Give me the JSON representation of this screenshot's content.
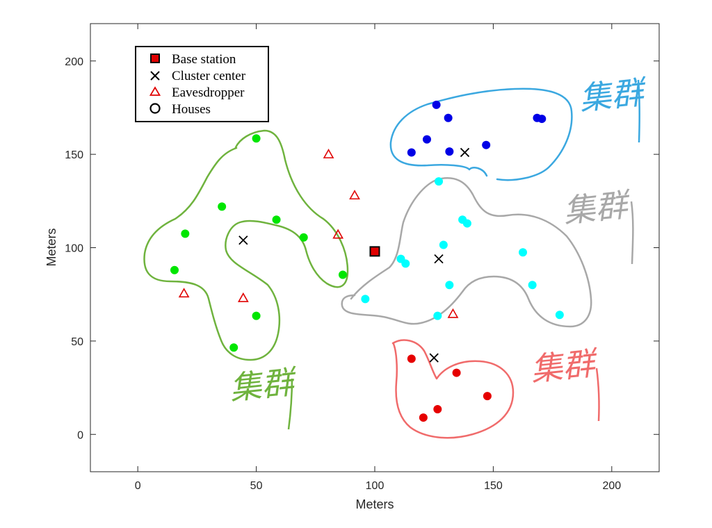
{
  "chart_data": {
    "type": "scatter",
    "xlabel": "Meters",
    "ylabel": "Meters",
    "xlim": [
      -20,
      220
    ],
    "ylim": [
      -20,
      220
    ],
    "xticks": [
      0,
      50,
      100,
      150,
      200
    ],
    "yticks": [
      0,
      50,
      100,
      150,
      200
    ],
    "grid": false,
    "legend": {
      "placement": "top-left",
      "entries": [
        {
          "label": "Base station",
          "marker": "square",
          "color": "#e00000"
        },
        {
          "label": "Cluster center",
          "marker": "x",
          "color": "#000000"
        },
        {
          "label": "Eavesdropper",
          "marker": "triangle",
          "color": "#e00000"
        },
        {
          "label": "Houses",
          "marker": "circle",
          "color": "#000000"
        }
      ]
    },
    "base_station": [
      {
        "x": 100,
        "y": 98
      }
    ],
    "cluster_centers": [
      {
        "x": 44.5,
        "y": 104
      },
      {
        "x": 138,
        "y": 151
      },
      {
        "x": 127,
        "y": 94
      },
      {
        "x": 125,
        "y": 41
      }
    ],
    "eavesdroppers": [
      {
        "x": 80.5,
        "y": 150
      },
      {
        "x": 91.5,
        "y": 128
      },
      {
        "x": 84.5,
        "y": 107
      },
      {
        "x": 19.5,
        "y": 75.5
      },
      {
        "x": 44.5,
        "y": 73
      },
      {
        "x": 133,
        "y": 64.5
      }
    ],
    "series": [
      {
        "color": "#00e600",
        "points": [
          {
            "x": 50,
            "y": 158.5
          },
          {
            "x": 35.5,
            "y": 122
          },
          {
            "x": 20,
            "y": 107.5
          },
          {
            "x": 58.5,
            "y": 115
          },
          {
            "x": 70,
            "y": 105.5
          },
          {
            "x": 15.5,
            "y": 88
          },
          {
            "x": 86.5,
            "y": 85.5
          },
          {
            "x": 50,
            "y": 63.5
          },
          {
            "x": 40.5,
            "y": 46.5
          }
        ]
      },
      {
        "color": "#0000e6",
        "points": [
          {
            "x": 126,
            "y": 176.5
          },
          {
            "x": 131,
            "y": 169.5
          },
          {
            "x": 168.5,
            "y": 169.5
          },
          {
            "x": 170.5,
            "y": 169
          },
          {
            "x": 122,
            "y": 158
          },
          {
            "x": 147,
            "y": 155
          },
          {
            "x": 115.5,
            "y": 151
          },
          {
            "x": 131.5,
            "y": 151.5
          }
        ]
      },
      {
        "color": "#00ffff",
        "points": [
          {
            "x": 127,
            "y": 135.5
          },
          {
            "x": 137,
            "y": 115
          },
          {
            "x": 139,
            "y": 113
          },
          {
            "x": 129,
            "y": 101.5
          },
          {
            "x": 162.5,
            "y": 97.5
          },
          {
            "x": 111,
            "y": 94
          },
          {
            "x": 113,
            "y": 91.5
          },
          {
            "x": 131.5,
            "y": 80
          },
          {
            "x": 166.5,
            "y": 80
          },
          {
            "x": 96,
            "y": 72.5
          },
          {
            "x": 126.5,
            "y": 63.5
          },
          {
            "x": 178,
            "y": 64
          }
        ]
      },
      {
        "color": "#e60000",
        "points": [
          {
            "x": 115.5,
            "y": 40.5
          },
          {
            "x": 134.5,
            "y": 33
          },
          {
            "x": 147.5,
            "y": 20.5
          },
          {
            "x": 126.5,
            "y": 13.5
          },
          {
            "x": 120.5,
            "y": 9
          }
        ]
      }
    ],
    "annotations": [
      {
        "text": "集群",
        "color": "#3ba8e0"
      },
      {
        "text": "集群",
        "color": "#a8a8a8"
      },
      {
        "text": "集群",
        "color": "#6fb33e"
      },
      {
        "text": "集群",
        "color": "#f06b6b"
      }
    ]
  }
}
